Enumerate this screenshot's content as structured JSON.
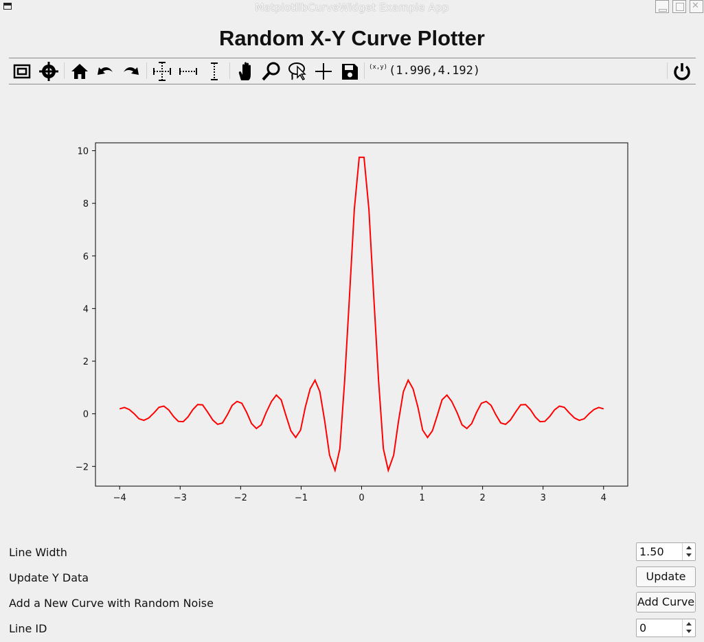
{
  "window": {
    "title": "MatplotlibCurveWidget Example App"
  },
  "heading": "Random X-Y Curve Plotter",
  "toolbar": {
    "items": [
      "fit-window-icon",
      "crosshair-target-icon",
      "home-icon",
      "undo-icon",
      "redo-icon",
      "expand-xy-icon",
      "expand-x-icon",
      "expand-y-icon",
      "pan-hand-icon",
      "zoom-icon",
      "lasso-select-icon",
      "crosshair-icon",
      "save-icon",
      "power-icon"
    ],
    "coord_label": "(x,y)",
    "coord_value": "(1.996,4.192)"
  },
  "chart_data": {
    "type": "line",
    "line_color": "#ff0000",
    "xlim": [
      -4.4,
      4.4
    ],
    "ylim": [
      -2.75,
      10.3
    ],
    "xticks": [
      -4,
      -3,
      -2,
      -1,
      0,
      1,
      2,
      3,
      4
    ],
    "xtick_labels": [
      "−4",
      "−3",
      "−2",
      "−1",
      "0",
      "1",
      "2",
      "3",
      "4"
    ],
    "yticks": [
      -2,
      0,
      2,
      4,
      6,
      8,
      10
    ],
    "ytick_labels": [
      "−2",
      "0",
      "2",
      "4",
      "6",
      "8",
      "10"
    ],
    "series": [
      {
        "x": [
          -4.0,
          -3.92,
          -3.84,
          -3.76,
          -3.68,
          -3.6,
          -3.52,
          -3.43,
          -3.35,
          -3.27,
          -3.19,
          -3.11,
          -3.03,
          -2.95,
          -2.87,
          -2.79,
          -2.71,
          -2.63,
          -2.55,
          -2.46,
          -2.38,
          -2.3,
          -2.22,
          -2.14,
          -2.06,
          -1.98,
          -1.9,
          -1.82,
          -1.74,
          -1.66,
          -1.58,
          -1.49,
          -1.41,
          -1.33,
          -1.25,
          -1.17,
          -1.09,
          -1.01,
          -0.93,
          -0.85,
          -0.77,
          -0.69,
          -0.61,
          -0.53,
          -0.44,
          -0.36,
          -0.28,
          -0.2,
          -0.12,
          -0.04,
          0.04,
          0.12,
          0.2,
          0.28,
          0.36,
          0.44,
          0.53,
          0.61,
          0.69,
          0.77,
          0.85,
          0.93,
          1.01,
          1.09,
          1.17,
          1.25,
          1.33,
          1.41,
          1.49,
          1.58,
          1.66,
          1.74,
          1.82,
          1.9,
          1.98,
          2.06,
          2.14,
          2.22,
          2.3,
          2.38,
          2.46,
          2.55,
          2.63,
          2.71,
          2.79,
          2.87,
          2.95,
          3.03,
          3.11,
          3.19,
          3.27,
          3.35,
          3.43,
          3.52,
          3.6,
          3.68,
          3.76,
          3.84,
          3.92,
          4.0
        ],
        "y": [
          0.19,
          0.24,
          0.16,
          0.0,
          -0.19,
          -0.25,
          -0.16,
          0.04,
          0.25,
          0.29,
          0.15,
          -0.1,
          -0.29,
          -0.3,
          -0.12,
          0.16,
          0.35,
          0.34,
          0.08,
          -0.24,
          -0.4,
          -0.35,
          -0.04,
          0.32,
          0.47,
          0.4,
          0.05,
          -0.37,
          -0.56,
          -0.42,
          0.04,
          0.47,
          0.71,
          0.53,
          -0.07,
          -0.65,
          -0.9,
          -0.62,
          0.26,
          0.95,
          1.28,
          0.84,
          -0.28,
          -1.57,
          -2.15,
          -1.33,
          1.26,
          4.49,
          7.78,
          9.75,
          9.75,
          7.78,
          4.49,
          1.26,
          -1.33,
          -2.15,
          -1.57,
          -0.28,
          0.84,
          1.28,
          0.95,
          0.26,
          -0.62,
          -0.9,
          -0.65,
          -0.07,
          0.53,
          0.71,
          0.47,
          0.04,
          -0.42,
          -0.56,
          -0.37,
          0.05,
          0.4,
          0.47,
          0.32,
          -0.04,
          -0.35,
          -0.4,
          -0.24,
          0.08,
          0.34,
          0.35,
          0.16,
          -0.12,
          -0.3,
          -0.29,
          -0.1,
          0.15,
          0.29,
          0.25,
          0.04,
          -0.16,
          -0.25,
          -0.19,
          0.0,
          0.16,
          0.24,
          0.19
        ]
      }
    ]
  },
  "controls": {
    "line_width": {
      "label": "Line Width",
      "value": "1.50"
    },
    "update_y": {
      "label": "Update Y Data",
      "button": "Update"
    },
    "add_curve": {
      "label": "Add a New Curve with Random Noise",
      "button": "Add Curve"
    },
    "line_id": {
      "label": "Line ID",
      "value": "0"
    }
  }
}
